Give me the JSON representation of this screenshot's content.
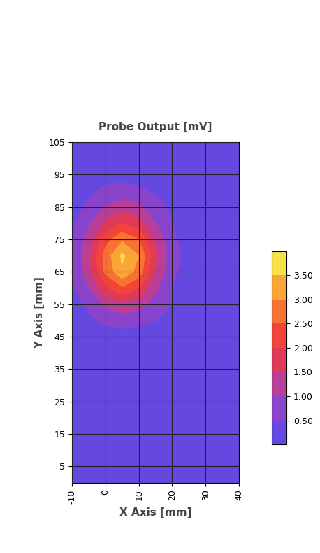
{
  "chart_data": {
    "type": "heatmap",
    "title": "Probe Output [mV]",
    "x_label": "X Axis [mm]",
    "y_label": "Y Axis [mm]",
    "xlim": [
      -10,
      40
    ],
    "ylim": [
      0,
      105
    ],
    "xticks": [
      -10,
      0,
      10,
      20,
      30,
      40
    ],
    "yticks": [
      5,
      15,
      25,
      35,
      45,
      55,
      65,
      75,
      85,
      95,
      105
    ],
    "grid": true,
    "cells": {
      "x": [
        -10,
        -5,
        0,
        5,
        10,
        15,
        20,
        25,
        30,
        35,
        40
      ],
      "y": [
        0,
        5,
        10,
        15,
        20,
        25,
        30,
        35,
        40,
        45,
        50,
        55,
        60,
        65,
        70,
        75,
        80,
        85,
        90,
        95,
        100,
        105
      ],
      "z": [
        [
          0.3,
          0.3,
          0.3,
          0.3,
          0.3,
          0.3,
          0.3,
          0.3,
          0.3,
          0.3,
          0.3
        ],
        [
          0.3,
          0.3,
          0.3,
          0.3,
          0.3,
          0.3,
          0.3,
          0.3,
          0.3,
          0.3,
          0.3
        ],
        [
          0.3,
          0.3,
          0.3,
          0.3,
          0.3,
          0.3,
          0.3,
          0.3,
          0.3,
          0.3,
          0.3
        ],
        [
          0.3,
          0.3,
          0.3,
          0.3,
          0.3,
          0.3,
          0.3,
          0.3,
          0.3,
          0.3,
          0.3
        ],
        [
          0.3,
          0.3,
          0.3,
          0.3,
          0.3,
          0.3,
          0.3,
          0.3,
          0.3,
          0.3,
          0.3
        ],
        [
          0.3,
          0.3,
          0.3,
          0.3,
          0.3,
          0.3,
          0.3,
          0.3,
          0.3,
          0.3,
          0.3
        ],
        [
          0.3,
          0.3,
          0.3,
          0.3,
          0.3,
          0.3,
          0.3,
          0.3,
          0.3,
          0.3,
          0.3
        ],
        [
          0.3,
          0.3,
          0.3,
          0.3,
          0.3,
          0.3,
          0.3,
          0.3,
          0.3,
          0.3,
          0.3
        ],
        [
          0.3,
          0.3,
          0.3,
          0.3,
          0.3,
          0.3,
          0.3,
          0.3,
          0.3,
          0.3,
          0.3
        ],
        [
          0.3,
          0.3,
          0.3,
          0.3,
          0.3,
          0.3,
          0.3,
          0.3,
          0.3,
          0.3,
          0.3
        ],
        [
          0.3,
          0.4,
          0.6,
          0.7,
          0.6,
          0.5,
          0.4,
          0.3,
          0.3,
          0.3,
          0.3
        ],
        [
          0.3,
          0.6,
          1.1,
          1.4,
          1.2,
          0.8,
          0.5,
          0.4,
          0.3,
          0.3,
          0.3
        ],
        [
          0.4,
          1.0,
          1.9,
          2.4,
          2.0,
          1.1,
          0.5,
          0.3,
          0.3,
          0.3,
          0.3
        ],
        [
          0.5,
          1.3,
          2.6,
          3.4,
          2.8,
          1.5,
          0.6,
          0.3,
          0.3,
          0.3,
          0.3
        ],
        [
          0.5,
          1.4,
          2.7,
          3.6,
          3.0,
          1.6,
          0.7,
          0.3,
          0.3,
          0.3,
          0.3
        ],
        [
          0.5,
          1.2,
          2.3,
          2.9,
          2.5,
          1.4,
          0.6,
          0.3,
          0.3,
          0.3,
          0.3
        ],
        [
          0.4,
          0.9,
          1.6,
          2.0,
          1.7,
          1.0,
          0.5,
          0.3,
          0.3,
          0.3,
          0.3
        ],
        [
          0.3,
          0.6,
          1.0,
          1.3,
          1.1,
          0.7,
          0.4,
          0.3,
          0.3,
          0.3,
          0.3
        ],
        [
          0.3,
          0.4,
          0.6,
          0.7,
          0.6,
          0.4,
          0.3,
          0.3,
          0.3,
          0.3,
          0.3
        ],
        [
          0.3,
          0.3,
          0.3,
          0.3,
          0.3,
          0.3,
          0.3,
          0.3,
          0.3,
          0.3,
          0.3
        ],
        [
          0.3,
          0.3,
          0.3,
          0.3,
          0.3,
          0.3,
          0.3,
          0.3,
          0.3,
          0.3,
          0.3
        ],
        [
          0.3,
          0.3,
          0.3,
          0.3,
          0.3,
          0.3,
          0.3,
          0.3,
          0.3,
          0.3,
          0.3
        ]
      ]
    },
    "colorbar": {
      "range": [
        0,
        4.0
      ],
      "ticks": [
        {
          "value": 0.5,
          "label": "0.50"
        },
        {
          "value": 1.0,
          "label": "1.00"
        },
        {
          "value": 1.5,
          "label": "1.50"
        },
        {
          "value": 2.0,
          "label": "2.00"
        },
        {
          "value": 2.5,
          "label": "2.50"
        },
        {
          "value": 3.0,
          "label": "3.00"
        },
        {
          "value": 3.5,
          "label": "3.50"
        }
      ]
    }
  }
}
